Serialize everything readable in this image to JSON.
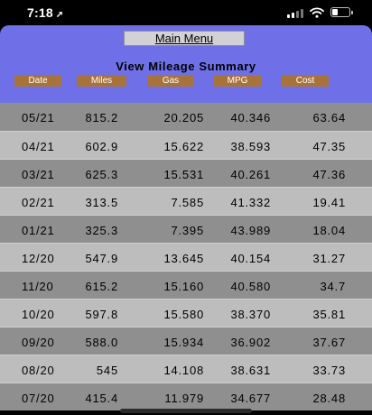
{
  "status_bar": {
    "time": "7:18",
    "location_glyph": "➚"
  },
  "header": {
    "main_menu_label": "Main Menu",
    "title": "View Mileage Summary",
    "columns": [
      "Date",
      "Miles",
      "Gas",
      "MPG",
      "Cost"
    ]
  },
  "colors": {
    "header_bg": "#6f70e8",
    "column_button": "#a8733a",
    "row_dark": "#8f8f8f",
    "row_light": "#bdbdbd"
  },
  "rows": [
    {
      "date": "05/21",
      "miles": "815.2",
      "gas": "20.205",
      "mpg": "40.346",
      "cost": "63.64"
    },
    {
      "date": "04/21",
      "miles": "602.9",
      "gas": "15.622",
      "mpg": "38.593",
      "cost": "47.35"
    },
    {
      "date": "03/21",
      "miles": "625.3",
      "gas": "15.531",
      "mpg": "40.261",
      "cost": "47.36"
    },
    {
      "date": "02/21",
      "miles": "313.5",
      "gas": "7.585",
      "mpg": "41.332",
      "cost": "19.41"
    },
    {
      "date": "01/21",
      "miles": "325.3",
      "gas": "7.395",
      "mpg": "43.989",
      "cost": "18.04"
    },
    {
      "date": "12/20",
      "miles": "547.9",
      "gas": "13.645",
      "mpg": "40.154",
      "cost": "31.27"
    },
    {
      "date": "11/20",
      "miles": "615.2",
      "gas": "15.160",
      "mpg": "40.580",
      "cost": "34.7"
    },
    {
      "date": "10/20",
      "miles": "597.8",
      "gas": "15.580",
      "mpg": "38.370",
      "cost": "35.81"
    },
    {
      "date": "09/20",
      "miles": "588.0",
      "gas": "15.934",
      "mpg": "36.902",
      "cost": "37.67"
    },
    {
      "date": "08/20",
      "miles": "545",
      "gas": "14.108",
      "mpg": "38.631",
      "cost": "33.73"
    },
    {
      "date": "07/20",
      "miles": "415.4",
      "gas": "11.979",
      "mpg": "34.677",
      "cost": "28.48"
    }
  ]
}
